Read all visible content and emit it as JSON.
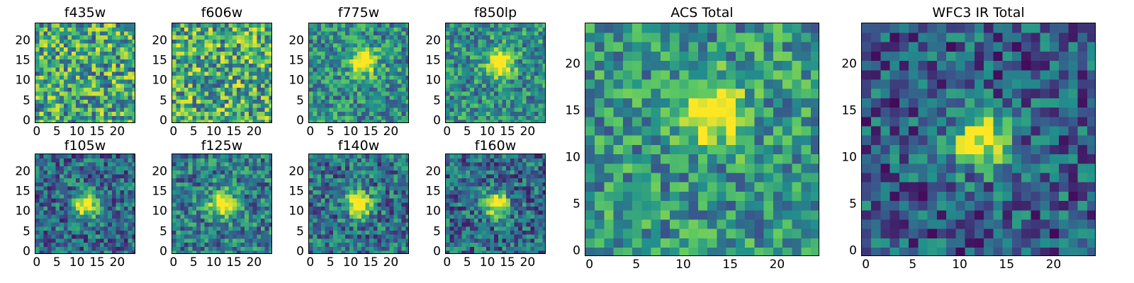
{
  "colormap": [
    "#440154",
    "#3b528b",
    "#21918c",
    "#5ec962",
    "#fde725"
  ],
  "chart_data": [
    {
      "type": "heatmap",
      "title": "f435w",
      "size": 25,
      "xlim": [
        0,
        24
      ],
      "ylim": [
        0,
        24
      ],
      "xticks": [
        0,
        5,
        10,
        15,
        20
      ],
      "yticks": [
        0,
        5,
        10,
        15,
        20
      ],
      "pattern": "noise",
      "peak": null,
      "bg": 0.6
    },
    {
      "type": "heatmap",
      "title": "f606w",
      "size": 25,
      "xlim": [
        0,
        24
      ],
      "ylim": [
        0,
        24
      ],
      "xticks": [
        0,
        5,
        10,
        15,
        20
      ],
      "yticks": [
        0,
        5,
        10,
        15,
        20
      ],
      "pattern": "noise",
      "peak": null,
      "bg": 0.62
    },
    {
      "type": "heatmap",
      "title": "f775w",
      "size": 25,
      "xlim": [
        0,
        24
      ],
      "ylim": [
        0,
        24
      ],
      "xticks": [
        0,
        5,
        10,
        15,
        20
      ],
      "yticks": [
        0,
        5,
        10,
        15,
        20
      ],
      "pattern": "source",
      "peak": [
        13,
        15
      ],
      "bg": 0.5
    },
    {
      "type": "heatmap",
      "title": "f850lp",
      "size": 25,
      "xlim": [
        0,
        24
      ],
      "ylim": [
        0,
        24
      ],
      "xticks": [
        0,
        5,
        10,
        15,
        20
      ],
      "yticks": [
        0,
        5,
        10,
        15,
        20
      ],
      "pattern": "source",
      "peak": [
        13,
        15
      ],
      "bg": 0.5
    },
    {
      "type": "heatmap",
      "title": "f105w",
      "size": 25,
      "xlim": [
        0,
        24
      ],
      "ylim": [
        0,
        24
      ],
      "xticks": [
        0,
        5,
        10,
        15,
        20
      ],
      "yticks": [
        0,
        5,
        10,
        15,
        20
      ],
      "pattern": "source",
      "peak": [
        12,
        12
      ],
      "bg": 0.35
    },
    {
      "type": "heatmap",
      "title": "f125w",
      "size": 25,
      "xlim": [
        0,
        24
      ],
      "ylim": [
        0,
        24
      ],
      "xticks": [
        0,
        5,
        10,
        15,
        20
      ],
      "yticks": [
        0,
        5,
        10,
        15,
        20
      ],
      "pattern": "source",
      "peak": [
        12,
        12
      ],
      "bg": 0.42
    },
    {
      "type": "heatmap",
      "title": "f140w",
      "size": 25,
      "xlim": [
        0,
        24
      ],
      "ylim": [
        0,
        24
      ],
      "xticks": [
        0,
        5,
        10,
        15,
        20
      ],
      "yticks": [
        0,
        5,
        10,
        15,
        20
      ],
      "pattern": "source",
      "peak": [
        12,
        12
      ],
      "bg": 0.38
    },
    {
      "type": "heatmap",
      "title": "f160w",
      "size": 25,
      "xlim": [
        0,
        24
      ],
      "ylim": [
        0,
        24
      ],
      "xticks": [
        0,
        5,
        10,
        15,
        20
      ],
      "yticks": [
        0,
        5,
        10,
        15,
        20
      ],
      "pattern": "source",
      "peak": [
        12,
        12
      ],
      "bg": 0.35
    },
    {
      "type": "heatmap",
      "title": "ACS Total",
      "size": 25,
      "xlim": [
        0,
        24
      ],
      "ylim": [
        0,
        24
      ],
      "xticks": [
        0,
        5,
        10,
        15,
        20
      ],
      "yticks": [
        0,
        5,
        10,
        15,
        20
      ],
      "pattern": "source",
      "peak": [
        13,
        15
      ],
      "bg": 0.52
    },
    {
      "type": "heatmap",
      "title": "WFC3 IR Total",
      "size": 25,
      "xlim": [
        0,
        24
      ],
      "ylim": [
        0,
        24
      ],
      "xticks": [
        0,
        5,
        10,
        15,
        20
      ],
      "yticks": [
        0,
        5,
        10,
        15,
        20
      ],
      "pattern": "source",
      "peak": [
        12,
        12
      ],
      "bg": 0.3
    }
  ]
}
